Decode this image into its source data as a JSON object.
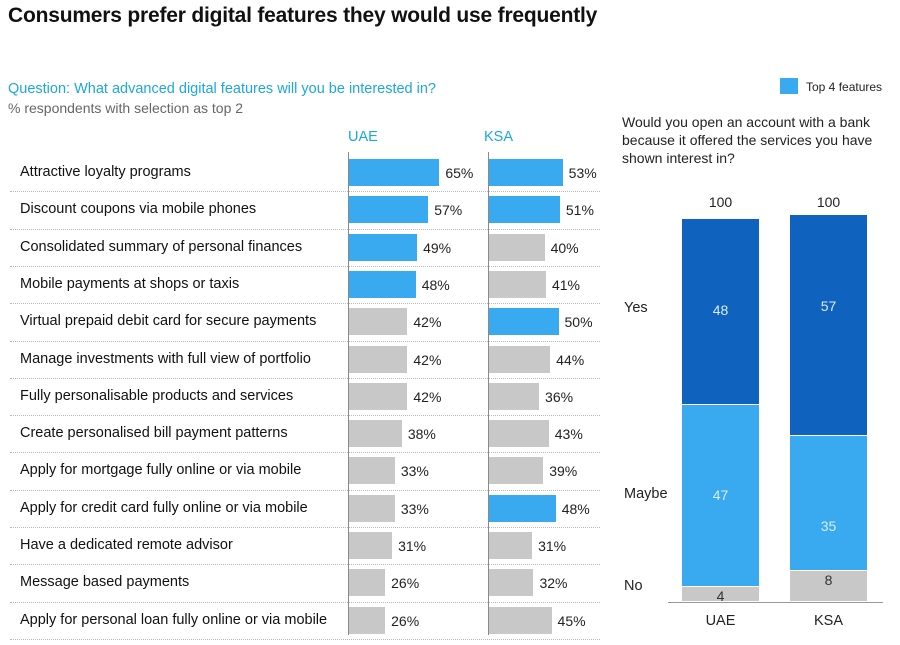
{
  "title": "Consumers prefer digital features they would use frequently",
  "question": "Question: What advanced digital features will you be interested in?",
  "subtitle": "% respondents with selection as top 2",
  "legend": {
    "label": "Top 4 features",
    "color": "#3aaaf0"
  },
  "colors": {
    "highlight": "#3aaaf0",
    "other": "#c8c8c8",
    "yes": "#0f62be",
    "maybe": "#3aaaf0",
    "no": "#c8c8c8"
  },
  "chart_data": [
    {
      "type": "bar",
      "title": "",
      "series": [
        {
          "name": "UAE",
          "values": [
            65,
            57,
            49,
            48,
            42,
            42,
            42,
            38,
            33,
            33,
            31,
            26,
            26
          ],
          "labels": [
            "65%",
            "57%",
            "49%",
            "48%",
            "42%",
            "42%",
            "42%",
            "38%",
            "33%",
            "33%",
            "31%",
            "26%",
            "26%"
          ],
          "top4": [
            true,
            true,
            true,
            true,
            false,
            false,
            false,
            false,
            false,
            false,
            false,
            false,
            false
          ]
        },
        {
          "name": "KSA",
          "values": [
            53,
            51,
            40,
            41,
            50,
            44,
            36,
            43,
            39,
            48,
            31,
            32,
            45
          ],
          "labels": [
            "53%",
            "51%",
            "40%",
            "41%",
            "50%",
            "44%",
            "36%",
            "43%",
            "39%",
            "48%",
            "31%",
            "32%",
            "45%"
          ],
          "top4": [
            true,
            true,
            false,
            false,
            true,
            false,
            false,
            false,
            false,
            true,
            false,
            false,
            false
          ]
        }
      ],
      "categories": [
        "Attractive loyalty programs",
        "Discount coupons via mobile phones",
        "Consolidated summary of personal finances",
        "Mobile payments at shops or taxis",
        "Virtual prepaid debit card for secure payments",
        "Manage investments with full view of portfolio",
        "Fully personalisable products and services",
        "Create personalised bill payment patterns",
        "Apply for mortgage fully online or via mobile",
        "Apply for credit card fully online or via mobile",
        "Have a dedicated remote advisor",
        "Message based payments",
        "Apply for personal loan fully online or via mobile"
      ]
    },
    {
      "type": "bar",
      "stacked": true,
      "title": "Would you open an account with a bank because it offered the services you have shown interest in?",
      "categories": [
        "UAE",
        "KSA"
      ],
      "totals": [
        "100",
        "100"
      ],
      "series": [
        {
          "name": "No",
          "values": [
            4,
            8
          ],
          "labels": [
            "4",
            "8"
          ]
        },
        {
          "name": "Maybe",
          "values": [
            47,
            35
          ],
          "labels": [
            "47",
            "35"
          ]
        },
        {
          "name": "Yes",
          "values": [
            48,
            57
          ],
          "labels": [
            "48",
            "57"
          ]
        }
      ]
    }
  ]
}
